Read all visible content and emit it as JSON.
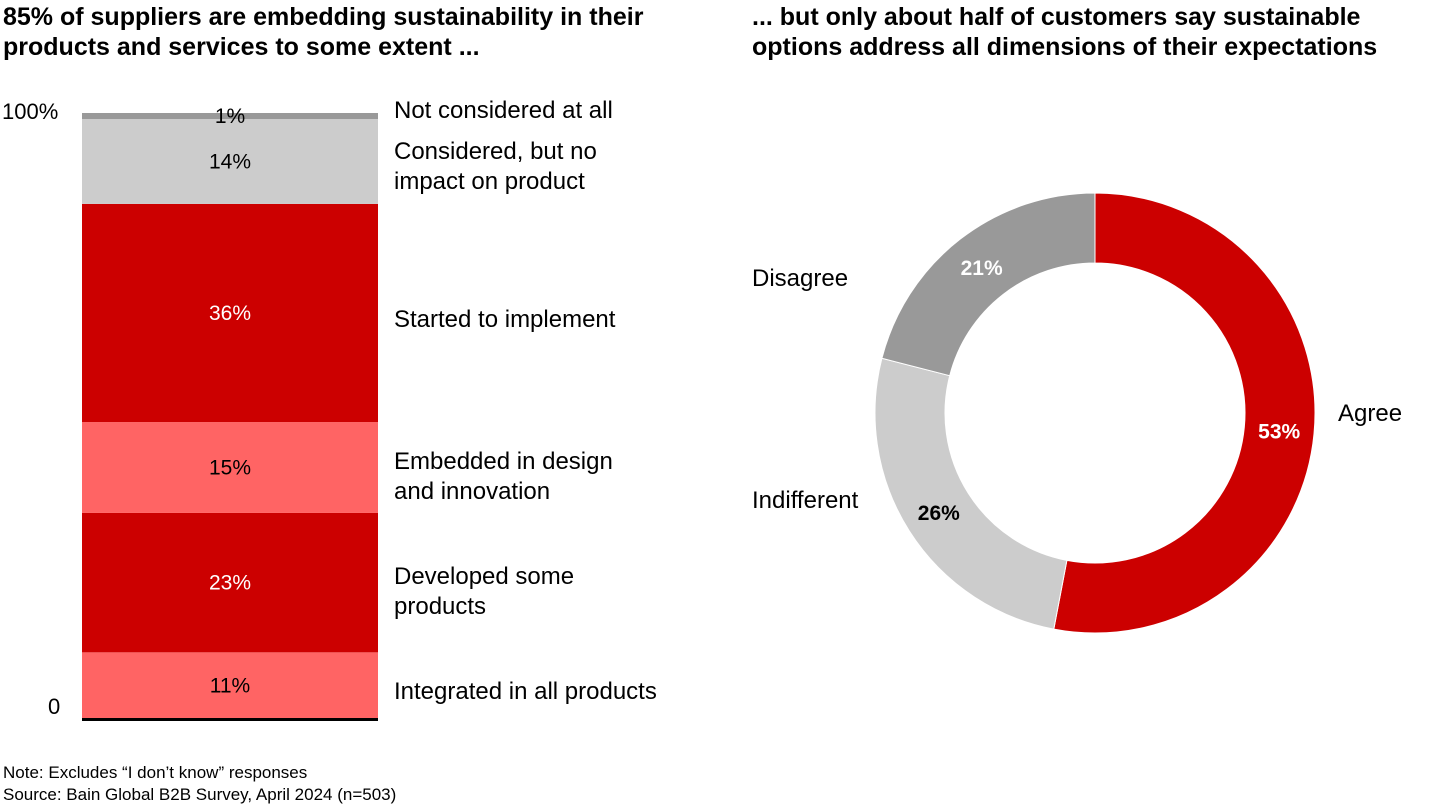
{
  "left_title": "85% of suppliers are embedding sustainability in their products and services to some extent ...",
  "right_title": "... but only about half of customers say sustainable options address all dimensions of their expectations",
  "note": "Note: Excludes “I don’t know” responses",
  "source": "Source: Bain Global B2B Survey, April 2024 (n=503)",
  "chart_data": [
    {
      "type": "bar",
      "stacked": true,
      "y_tick_labels": [
        "100%",
        "0"
      ],
      "ylim": [
        0,
        100
      ],
      "segments": [
        {
          "category": "Integrated in all products",
          "value": 11,
          "label": "11%",
          "color": "#ff6464",
          "label_color": "#000000"
        },
        {
          "category": "Developed some products",
          "value": 23,
          "label": "23%",
          "color": "#cc0000",
          "label_color": "#ffffff"
        },
        {
          "category": "Embedded in design and innovation",
          "value": 15,
          "label": "15%",
          "color": "#ff6464",
          "label_color": "#000000"
        },
        {
          "category": "Started to implement",
          "value": 36,
          "label": "36%",
          "color": "#cc0000",
          "label_color": "#ffffff"
        },
        {
          "category": "Considered, but no impact on product",
          "value": 14,
          "label": "14%",
          "color": "#cccccc",
          "label_color": "#000000"
        },
        {
          "category": "Not considered at all",
          "value": 1,
          "label": "1%",
          "color": "#999999",
          "label_color": "#000000"
        }
      ]
    },
    {
      "type": "pie",
      "donut": true,
      "slices": [
        {
          "category": "Agree",
          "value": 53,
          "label": "53%",
          "color": "#cc0000",
          "label_color": "#ffffff"
        },
        {
          "category": "Indifferent",
          "value": 26,
          "label": "26%",
          "color": "#cccccc",
          "label_color": "#000000"
        },
        {
          "category": "Disagree",
          "value": 21,
          "label": "21%",
          "color": "#999999",
          "label_color": "#ffffff"
        }
      ]
    }
  ]
}
